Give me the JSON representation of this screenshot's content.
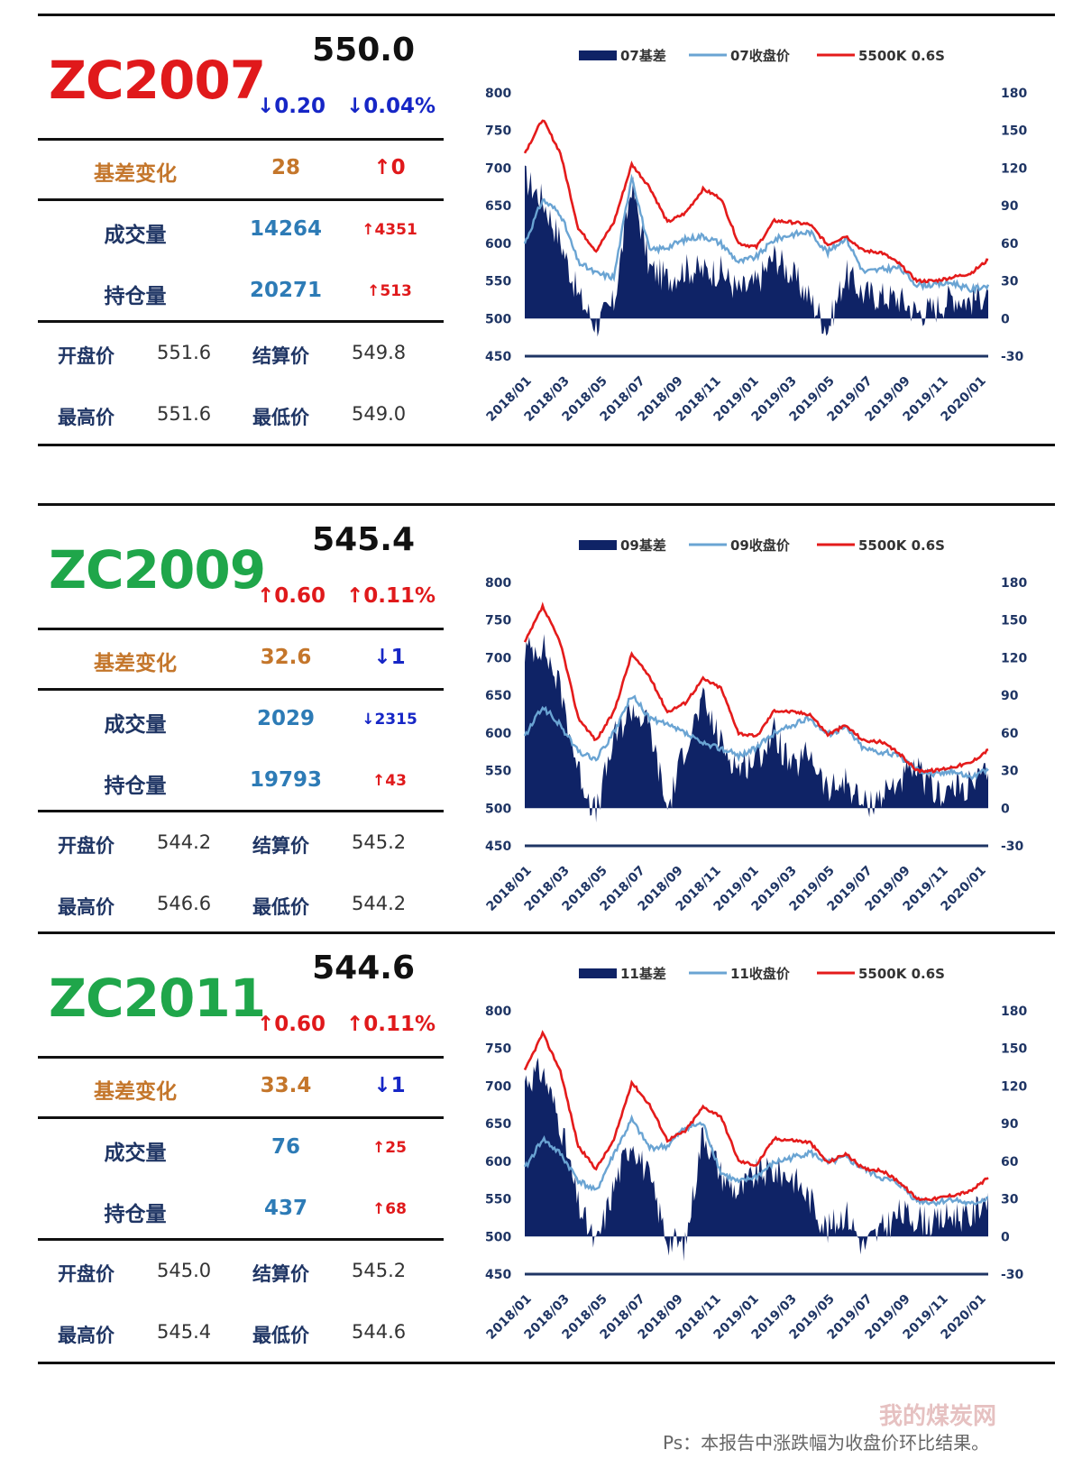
{
  "colors": {
    "red": "#e0191b",
    "green": "#1fa64a",
    "orange": "#c4762b",
    "blue": "#1f3564",
    "up": "#e0191b",
    "down": "#1626c6",
    "volblue": "#2d7bb6",
    "series_basis": "#0f2366",
    "series_close": "#6aa4d3",
    "series_spot": "#e41b1b"
  },
  "footer": {
    "note": "Ps：本报告中涨跌幅为收盘价环比结果。",
    "watermark": "我的煤炭网"
  },
  "labels": {
    "basis_change": "基差变化",
    "volume": "成交量",
    "open_interest": "持仓量",
    "open": "开盘价",
    "settle": "结算价",
    "high": "最高价",
    "low": "最低价"
  },
  "contracts": [
    {
      "code": "ZC2007",
      "code_color": "#e0191b",
      "price": "550.0",
      "chg": "↓0.20",
      "chg_dir": "down",
      "pct": "↓0.04%",
      "pct_dir": "down",
      "basis": "28",
      "basis_delta": "↑0",
      "basis_dir": "up",
      "volume": "14264",
      "volume_delta": "↑4351",
      "volume_dir": "up",
      "oi": "20271",
      "oi_delta": "↑513",
      "oi_dir": "up",
      "open": "551.6",
      "settle": "549.8",
      "high": "551.6",
      "low": "549.0"
    },
    {
      "code": "ZC2009",
      "code_color": "#1fa64a",
      "price": "545.4",
      "chg": "↑0.60",
      "chg_dir": "up",
      "pct": "↑0.11%",
      "pct_dir": "up",
      "basis": "32.6",
      "basis_delta": "↓1",
      "basis_dir": "down",
      "volume": "2029",
      "volume_delta": "↓2315",
      "volume_dir": "down",
      "oi": "19793",
      "oi_delta": "↑43",
      "oi_dir": "up",
      "open": "544.2",
      "settle": "545.2",
      "high": "546.6",
      "low": "544.2"
    },
    {
      "code": "ZC2011",
      "code_color": "#1fa64a",
      "price": "544.6",
      "chg": "↑0.60",
      "chg_dir": "up",
      "pct": "↑0.11%",
      "pct_dir": "up",
      "basis": "33.4",
      "basis_delta": "↓1",
      "basis_dir": "down",
      "volume": "76",
      "volume_delta": "↑25",
      "volume_dir": "up",
      "oi": "437",
      "oi_delta": "↑68",
      "oi_dir": "up",
      "open": "545.0",
      "settle": "545.2",
      "high": "545.4",
      "low": "544.6"
    }
  ],
  "chart_data": [
    {
      "type": "line",
      "x": [
        "2018/01",
        "2018/02",
        "2018/03",
        "2018/04",
        "2018/05",
        "2018/06",
        "2018/07",
        "2018/08",
        "2018/09",
        "2018/10",
        "2018/11",
        "2018/12",
        "2019/01",
        "2019/02",
        "2019/03",
        "2019/04",
        "2019/05",
        "2019/06",
        "2019/07",
        "2019/08",
        "2019/09",
        "2019/10",
        "2019/11",
        "2019/12",
        "2020/01",
        "2020/02",
        "2020/03"
      ],
      "x_tick_labels": [
        "2018/01",
        "2018/03",
        "2018/05",
        "2018/07",
        "2018/09",
        "2018/11",
        "2019/01",
        "2019/03",
        "2019/05",
        "2019/07",
        "2019/09",
        "2019/11",
        "2020/01"
      ],
      "y_left": {
        "range": [
          450,
          800
        ],
        "ticks": [
          450,
          500,
          550,
          600,
          650,
          700,
          750,
          800
        ]
      },
      "y_right": {
        "range": [
          -30,
          180
        ],
        "ticks": [
          -30,
          0,
          30,
          60,
          90,
          120,
          150,
          180
        ]
      },
      "legend": "top",
      "series": [
        {
          "name": "07基差",
          "kind": "area",
          "axis": "right",
          "values": [
            112,
            95,
            62,
            18,
            -5,
            12,
            108,
            40,
            32,
            40,
            38,
            38,
            22,
            28,
            50,
            35,
            16,
            -8,
            36,
            20,
            18,
            16,
            5,
            8,
            18,
            14,
            22
          ]
        },
        {
          "name": "07收盘价",
          "kind": "line",
          "axis": "left",
          "values": [
            600,
            658,
            640,
            575,
            560,
            555,
            690,
            590,
            595,
            605,
            610,
            600,
            575,
            582,
            605,
            612,
            615,
            588,
            608,
            562,
            565,
            568,
            545,
            545,
            548,
            538,
            545
          ]
        },
        {
          "name": "5500K 0.6S",
          "kind": "line",
          "axis": "left",
          "values": [
            720,
            765,
            720,
            620,
            590,
            628,
            705,
            675,
            628,
            640,
            672,
            660,
            600,
            595,
            630,
            628,
            625,
            598,
            610,
            590,
            588,
            573,
            550,
            550,
            555,
            560,
            578
          ]
        }
      ]
    },
    {
      "type": "line",
      "x": [
        "2018/01",
        "2018/02",
        "2018/03",
        "2018/04",
        "2018/05",
        "2018/06",
        "2018/07",
        "2018/08",
        "2018/09",
        "2018/10",
        "2018/11",
        "2018/12",
        "2019/01",
        "2019/02",
        "2019/03",
        "2019/04",
        "2019/05",
        "2019/06",
        "2019/07",
        "2019/08",
        "2019/09",
        "2019/10",
        "2019/11",
        "2019/12",
        "2020/01",
        "2020/02",
        "2020/03"
      ],
      "x_tick_labels": [
        "2018/01",
        "2018/03",
        "2018/05",
        "2018/07",
        "2018/09",
        "2018/11",
        "2019/01",
        "2019/03",
        "2019/05",
        "2019/07",
        "2019/09",
        "2019/11",
        "2020/01"
      ],
      "y_left": {
        "range": [
          450,
          800
        ],
        "ticks": [
          450,
          500,
          550,
          600,
          650,
          700,
          750,
          800
        ]
      },
      "y_right": {
        "range": [
          -30,
          180
        ],
        "ticks": [
          -30,
          0,
          30,
          60,
          90,
          120,
          150,
          180
        ]
      },
      "legend": "top",
      "series": [
        {
          "name": "09基差",
          "kind": "area",
          "axis": "right",
          "values": [
            125,
            130,
            95,
            30,
            -5,
            55,
            80,
            65,
            -2,
            50,
            85,
            52,
            32,
            40,
            60,
            30,
            45,
            12,
            22,
            2,
            10,
            22,
            30,
            12,
            15,
            18,
            28
          ]
        },
        {
          "name": "09收盘价",
          "kind": "line",
          "axis": "left",
          "values": [
            595,
            635,
            610,
            575,
            565,
            600,
            650,
            620,
            610,
            600,
            585,
            580,
            570,
            580,
            600,
            610,
            620,
            598,
            608,
            580,
            575,
            570,
            552,
            545,
            550,
            542,
            550
          ]
        },
        {
          "name": "5500K 0.6S",
          "kind": "line",
          "axis": "left",
          "values": [
            720,
            768,
            720,
            620,
            590,
            628,
            705,
            675,
            628,
            640,
            672,
            660,
            600,
            595,
            630,
            628,
            625,
            598,
            610,
            590,
            588,
            573,
            550,
            550,
            555,
            560,
            578
          ]
        }
      ]
    },
    {
      "type": "line",
      "x": [
        "2018/01",
        "2018/02",
        "2018/03",
        "2018/04",
        "2018/05",
        "2018/06",
        "2018/07",
        "2018/08",
        "2018/09",
        "2018/10",
        "2018/11",
        "2018/12",
        "2019/01",
        "2019/02",
        "2019/03",
        "2019/04",
        "2019/05",
        "2019/06",
        "2019/07",
        "2019/08",
        "2019/09",
        "2019/10",
        "2019/11",
        "2019/12",
        "2020/01",
        "2020/02",
        "2020/03"
      ],
      "x_tick_labels": [
        "2018/01",
        "2018/03",
        "2018/05",
        "2018/07",
        "2018/09",
        "2018/11",
        "2019/01",
        "2019/03",
        "2019/05",
        "2019/07",
        "2019/09",
        "2019/11",
        "2020/01"
      ],
      "y_left": {
        "range": [
          450,
          800
        ],
        "ticks": [
          450,
          500,
          550,
          600,
          650,
          700,
          750,
          800
        ]
      },
      "y_right": {
        "range": [
          -30,
          180
        ],
        "ticks": [
          -30,
          0,
          30,
          60,
          90,
          120,
          150,
          180
        ]
      },
      "legend": "top",
      "series": [
        {
          "name": "11基差",
          "kind": "area",
          "axis": "right",
          "values": [
            125,
            132,
            90,
            25,
            -8,
            40,
            78,
            45,
            -2,
            -8,
            85,
            50,
            35,
            50,
            52,
            48,
            30,
            5,
            20,
            -8,
            5,
            18,
            15,
            10,
            18,
            15,
            35
          ]
        },
        {
          "name": "11收盘价",
          "kind": "line",
          "axis": "left",
          "values": [
            590,
            630,
            610,
            575,
            560,
            610,
            655,
            618,
            620,
            645,
            650,
            585,
            572,
            580,
            598,
            605,
            612,
            598,
            605,
            590,
            578,
            570,
            548,
            545,
            550,
            542,
            552
          ]
        },
        {
          "name": "5500K 0.6S",
          "kind": "line",
          "axis": "left",
          "values": [
            720,
            770,
            720,
            620,
            590,
            628,
            705,
            675,
            628,
            640,
            672,
            660,
            600,
            595,
            630,
            628,
            625,
            598,
            610,
            590,
            588,
            573,
            550,
            550,
            555,
            560,
            578
          ]
        }
      ]
    }
  ]
}
